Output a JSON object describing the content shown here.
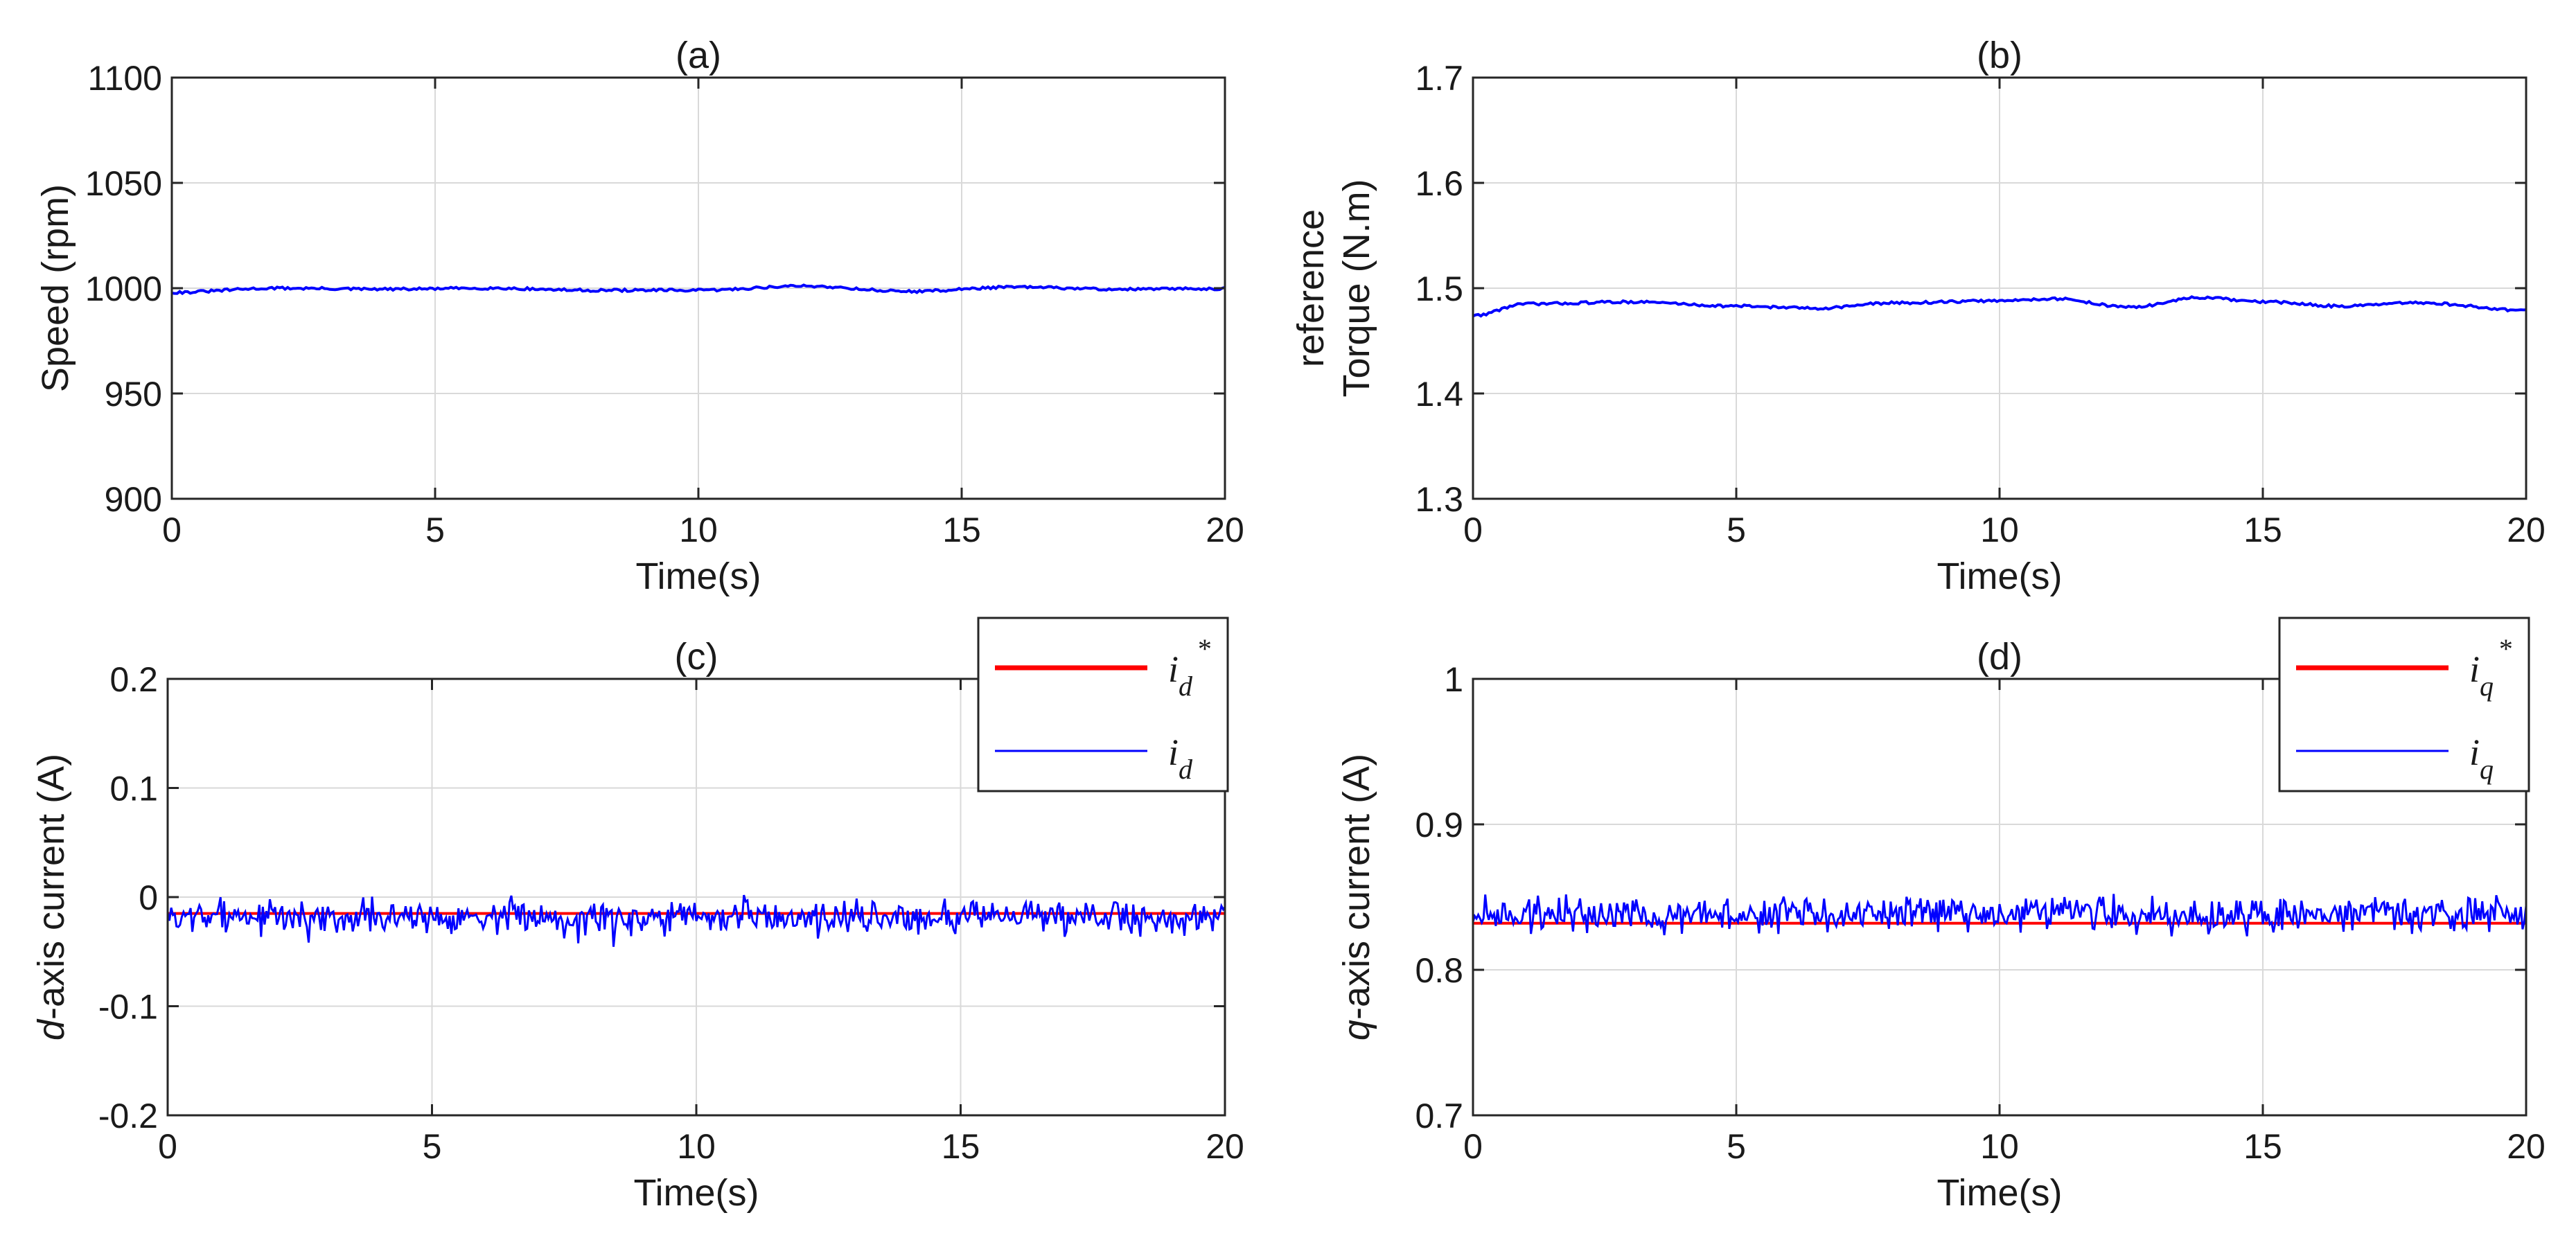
{
  "chart_data": [
    {
      "id": "a",
      "type": "line",
      "title": "(a)",
      "xlabel": "Time(s)",
      "ylabel_lines": [
        "Speed (rpm)"
      ],
      "xlim": [
        0,
        20
      ],
      "ylim": [
        900,
        1100
      ],
      "xticks": [
        0,
        5,
        10,
        15,
        20
      ],
      "yticks": [
        900,
        950,
        1000,
        1050,
        1100
      ],
      "grid": true,
      "legend": null,
      "series": [
        {
          "name": "speed",
          "color": "#0000ff",
          "kind": "smooth",
          "base": 999.3,
          "wave": [
            0.9,
            0.6,
            0.5
          ],
          "noise": 0.6,
          "x": [
            0,
            2,
            4,
            6,
            8,
            10,
            12,
            14,
            16,
            18,
            20
          ],
          "values": [
            998,
            1000,
            999.5,
            1000,
            999,
            999,
            1001,
            998.5,
            1000.5,
            999.5,
            999.8
          ]
        }
      ]
    },
    {
      "id": "b",
      "type": "line",
      "title": "(b)",
      "xlabel": "Time(s)",
      "ylabel_lines": [
        "reference",
        "Torque (N.m)"
      ],
      "xlim": [
        0,
        20
      ],
      "ylim": [
        1.3,
        1.7
      ],
      "xticks": [
        0,
        5,
        10,
        15,
        20
      ],
      "yticks": [
        1.3,
        1.4,
        1.5,
        1.6,
        1.7
      ],
      "grid": true,
      "legend": null,
      "series": [
        {
          "name": "reference torque",
          "color": "#0000ff",
          "kind": "smooth",
          "noise": 0.0012,
          "x": [
            0,
            1,
            3,
            5,
            6.5,
            8,
            10,
            11,
            12.5,
            13.8,
            15,
            16.5,
            18,
            20
          ],
          "values": [
            1.474,
            1.485,
            1.487,
            1.483,
            1.481,
            1.486,
            1.488,
            1.49,
            1.482,
            1.491,
            1.487,
            1.483,
            1.486,
            1.479
          ]
        }
      ]
    },
    {
      "id": "c",
      "type": "line",
      "title": "(c)",
      "xlabel": "Time(s)",
      "ylabel_lines": [
        "d-axis current (A)"
      ],
      "ylabel_italic_prefix": "d",
      "xlim": [
        0,
        20
      ],
      "ylim": [
        -0.2,
        0.2
      ],
      "xticks": [
        0,
        5,
        10,
        15,
        20
      ],
      "yticks": [
        -0.2,
        -0.1,
        0,
        0.1,
        0.2
      ],
      "ytick_labels": [
        "-0.2",
        "-0.1",
        "0",
        "0.1",
        "0.2"
      ],
      "grid": true,
      "legend": {
        "position": "top-right",
        "entries": [
          {
            "base": "i",
            "sub": "d",
            "sup": "*",
            "color": "#ff0000",
            "width": 7
          },
          {
            "base": "i",
            "sub": "d",
            "sup": "",
            "color": "#0000ff",
            "width": 3
          }
        ]
      },
      "series": [
        {
          "name": "i_d*",
          "color": "#ff0000",
          "kind": "flat",
          "x": [
            0,
            20
          ],
          "values": [
            -0.015,
            -0.015
          ]
        },
        {
          "name": "i_d",
          "color": "#0000ff",
          "kind": "noisy",
          "mean": -0.018,
          "amp": 0.012,
          "seed": 7,
          "points": 600,
          "x": [
            0,
            20
          ],
          "range": [
            -0.052,
            0.01
          ]
        }
      ]
    },
    {
      "id": "d",
      "type": "line",
      "title": "(d)",
      "xlabel": "Time(s)",
      "ylabel_lines": [
        "q-axis current (A)"
      ],
      "ylabel_italic_prefix": "q",
      "xlim": [
        0,
        20
      ],
      "ylim": [
        0.7,
        1.0
      ],
      "xticks": [
        0,
        5,
        10,
        15,
        20
      ],
      "yticks": [
        0.7,
        0.8,
        0.9,
        1.0
      ],
      "ytick_labels": [
        "0.7",
        "0.8",
        "0.9",
        "1"
      ],
      "grid": true,
      "legend": {
        "position": "top-right",
        "entries": [
          {
            "base": "i",
            "sub": "q",
            "sup": "*",
            "color": "#ff0000",
            "width": 7
          },
          {
            "base": "i",
            "sub": "q",
            "sup": "",
            "color": "#0000ff",
            "width": 3
          }
        ]
      },
      "series": [
        {
          "name": "i_q*",
          "color": "#ff0000",
          "kind": "flat",
          "x": [
            0,
            20
          ],
          "values": [
            0.832,
            0.832
          ]
        },
        {
          "name": "i_q",
          "color": "#0000ff",
          "kind": "noisy",
          "mean": 0.838,
          "amp": 0.009,
          "seed": 19,
          "points": 600,
          "x": [
            0,
            20
          ],
          "range": [
            0.815,
            0.868
          ]
        }
      ]
    }
  ]
}
